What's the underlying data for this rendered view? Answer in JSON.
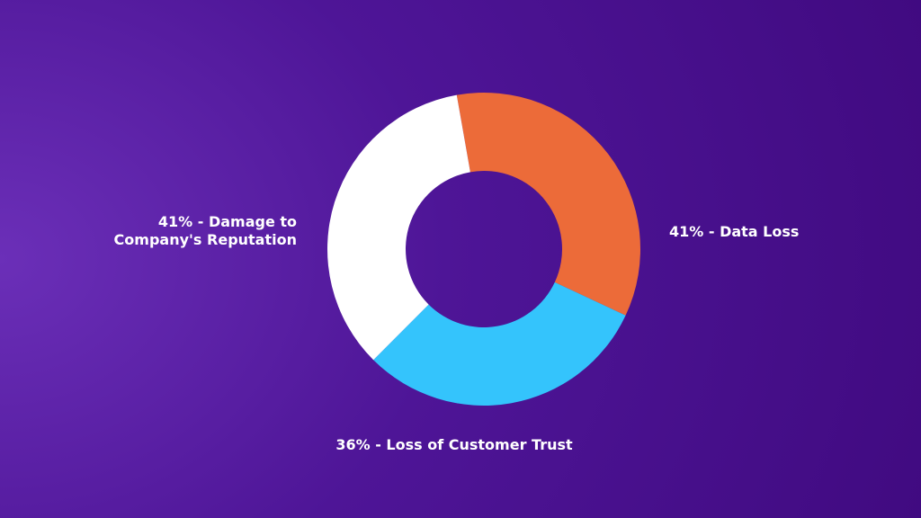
{
  "chart_data": {
    "type": "pie",
    "donut": true,
    "series": [
      {
        "label_lines": [
          "41% - Data Loss"
        ],
        "value": 41,
        "color": "#ec6b39"
      },
      {
        "label_lines": [
          "36% - Loss of Customer Trust"
        ],
        "value": 36,
        "color": "#34c4fc"
      },
      {
        "label_lines": [
          "41% - Damage to",
          "Company's Reputation"
        ],
        "value": 41,
        "color": "#ffffff"
      }
    ],
    "legend": "none"
  }
}
